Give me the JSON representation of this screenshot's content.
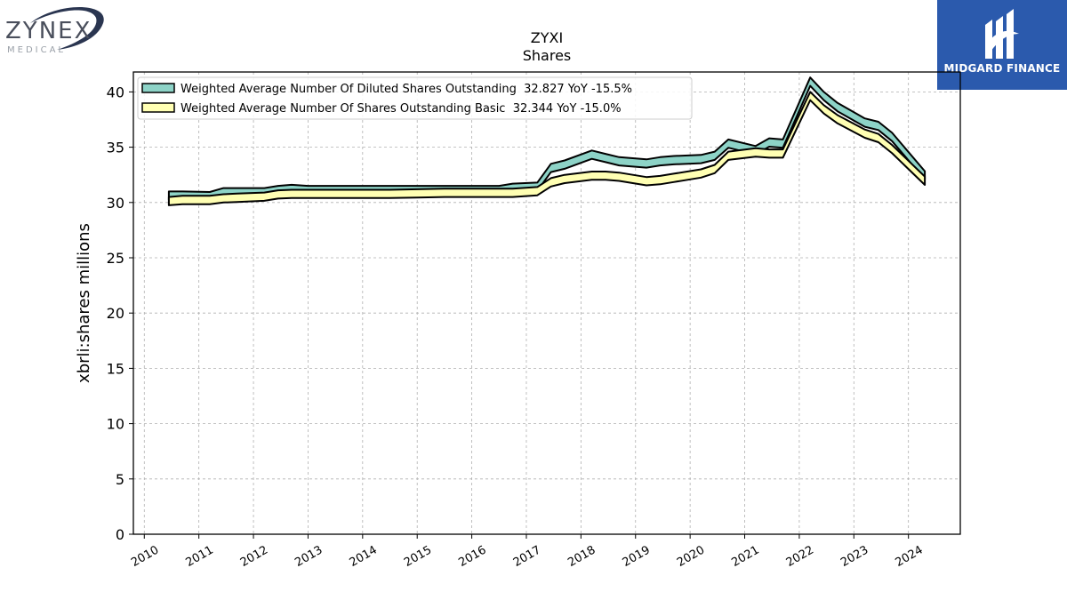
{
  "brand_left": {
    "name": "ZYNEX",
    "subtitle": "MEDICAL"
  },
  "brand_right": {
    "name": "MIDGARD FINANCE"
  },
  "chart_data": {
    "type": "area",
    "title": "ZYXI",
    "subtitle": "Shares",
    "xlabel": "",
    "ylabel": "xbrli:shares millions",
    "xlim": [
      2009.8,
      2024.95
    ],
    "ylim": [
      0,
      41.8
    ],
    "x_ticks": [
      2010,
      2011,
      2012,
      2013,
      2014,
      2015,
      2016,
      2017,
      2018,
      2019,
      2020,
      2021,
      2022,
      2023,
      2024
    ],
    "y_ticks": [
      0,
      5,
      10,
      15,
      20,
      25,
      30,
      35,
      40
    ],
    "grid": true,
    "legend_position": "upper-left",
    "band_width": 0.75,
    "series": [
      {
        "name": "Weighted Average Number Of Diluted Shares Outstanding  32.827 YoY -15.5%",
        "color": "#8dd3c7",
        "x": [
          2010.45,
          2010.7,
          2011.2,
          2011.45,
          2011.7,
          2012.2,
          2012.45,
          2012.7,
          2013.0,
          2013.5,
          2014.0,
          2014.5,
          2015.0,
          2015.5,
          2016.0,
          2016.5,
          2016.75,
          2017.2,
          2017.45,
          2017.7,
          2018.2,
          2018.45,
          2018.7,
          2019.2,
          2019.45,
          2019.7,
          2020.2,
          2020.45,
          2020.7,
          2021.2,
          2021.45,
          2021.7,
          2022.2,
          2022.45,
          2022.7,
          2023.2,
          2023.45,
          2023.7,
          2024.3
        ],
        "values": [
          31.0,
          31.0,
          30.95,
          31.3,
          31.3,
          31.3,
          31.5,
          31.6,
          31.5,
          31.5,
          31.5,
          31.5,
          31.5,
          31.5,
          31.5,
          31.5,
          31.7,
          31.8,
          33.5,
          33.8,
          34.7,
          34.4,
          34.1,
          33.9,
          34.1,
          34.2,
          34.3,
          34.6,
          35.7,
          35.1,
          35.8,
          35.7,
          41.3,
          40.0,
          39.0,
          37.6,
          37.3,
          36.3,
          32.827
        ]
      },
      {
        "name": "Weighted Average Number Of Shares Outstanding Basic  32.344 YoY -15.0%",
        "color": "#ffffb3",
        "x": [
          2010.45,
          2010.7,
          2011.2,
          2011.45,
          2011.7,
          2012.2,
          2012.45,
          2012.7,
          2013.0,
          2013.5,
          2014.0,
          2014.5,
          2015.0,
          2015.5,
          2016.0,
          2016.5,
          2016.75,
          2017.2,
          2017.45,
          2017.7,
          2018.2,
          2018.45,
          2018.7,
          2019.2,
          2019.45,
          2019.7,
          2020.2,
          2020.45,
          2020.7,
          2021.2,
          2021.45,
          2021.7,
          2022.2,
          2022.45,
          2022.7,
          2023.2,
          2023.45,
          2023.7,
          2024.3
        ],
        "values": [
          30.5,
          30.6,
          30.6,
          30.75,
          30.8,
          30.9,
          31.1,
          31.15,
          31.15,
          31.15,
          31.15,
          31.15,
          31.2,
          31.25,
          31.25,
          31.25,
          31.25,
          31.4,
          32.2,
          32.5,
          32.8,
          32.8,
          32.7,
          32.3,
          32.4,
          32.6,
          33.0,
          33.4,
          34.6,
          34.9,
          34.8,
          34.8,
          40.0,
          38.8,
          37.9,
          36.6,
          36.2,
          35.2,
          32.344
        ]
      }
    ]
  }
}
